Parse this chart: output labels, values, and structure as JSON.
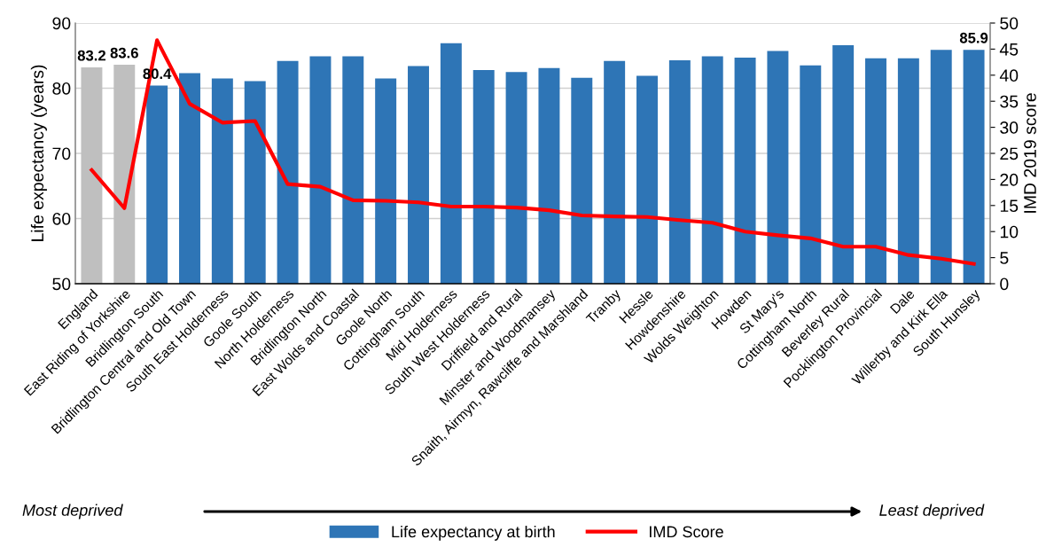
{
  "chart_data": {
    "type": "bar",
    "categories": [
      "England",
      "East Riding of Yorkshire",
      "Bridlington South",
      "Bridlington Central and Old Town",
      "South East Holderness",
      "Goole South",
      "North Holderness",
      "Bridlington North",
      "East Wolds and Coastal",
      "Goole North",
      "Cottingham South",
      "Mid Holderness",
      "South West Holderness",
      "Driffield and Rural",
      "Minster and Woodmansey",
      "Snaith, Airmyn, Rawcliffe and Marshland",
      "Tranby",
      "Hessle",
      "Howdenshire",
      "Wolds Weighton",
      "Howden",
      "St Mary's",
      "Cottingham North",
      "Beverley Rural",
      "Pocklington Provincial",
      "Dale",
      "Willerby and Kirk Ella",
      "South Hunsley"
    ],
    "series": [
      {
        "name": "Life expectancy at birth",
        "color": "#2e75b6",
        "colors": [
          "#bfbfbf",
          "#bfbfbf",
          "#2e75b6",
          "#2e75b6",
          "#2e75b6",
          "#2e75b6",
          "#2e75b6",
          "#2e75b6",
          "#2e75b6",
          "#2e75b6",
          "#2e75b6",
          "#2e75b6",
          "#2e75b6",
          "#2e75b6",
          "#2e75b6",
          "#2e75b6",
          "#2e75b6",
          "#2e75b6",
          "#2e75b6",
          "#2e75b6",
          "#2e75b6",
          "#2e75b6",
          "#2e75b6",
          "#2e75b6",
          "#2e75b6",
          "#2e75b6",
          "#2e75b6",
          "#2e75b6"
        ],
        "values": [
          83.2,
          83.6,
          80.4,
          82.3,
          81.5,
          81.1,
          84.2,
          84.9,
          84.9,
          81.5,
          83.4,
          86.9,
          82.8,
          82.5,
          83.1,
          81.6,
          84.2,
          81.9,
          84.3,
          84.9,
          84.7,
          85.7,
          83.5,
          86.6,
          84.6,
          84.6,
          85.9,
          85.9
        ],
        "value_labels": [
          "83.2",
          "83.6",
          "80.4",
          null,
          null,
          null,
          null,
          null,
          null,
          null,
          null,
          null,
          null,
          null,
          null,
          null,
          null,
          null,
          null,
          null,
          null,
          null,
          null,
          null,
          null,
          null,
          null,
          "85.9"
        ]
      },
      {
        "name": "IMD Score",
        "type": "line",
        "axis": "y2",
        "color": "#ff0000",
        "line_style": "solid",
        "marker": "none",
        "values": [
          21.8,
          14.5,
          46.7,
          34.5,
          30.9,
          31.2,
          19.1,
          18.6,
          16.0,
          15.9,
          15.6,
          14.8,
          14.8,
          14.6,
          14.1,
          13.1,
          12.9,
          12.8,
          12.2,
          11.7,
          10.0,
          9.3,
          8.7,
          7.1,
          7.1,
          5.5,
          4.8,
          3.8
        ]
      }
    ],
    "ylabel": "Life expectancy (years)",
    "y2label": "IMD 2019 score",
    "ylim": [
      50,
      90
    ],
    "yticks": [
      50,
      60,
      70,
      80,
      90
    ],
    "y2lim": [
      0,
      50
    ],
    "y2ticks": [
      0,
      5,
      10,
      15,
      20,
      25,
      30,
      35,
      40,
      45,
      50
    ],
    "grid": "y",
    "legend": "bottom",
    "annotations": [
      "Most deprived",
      "Least deprived"
    ]
  }
}
